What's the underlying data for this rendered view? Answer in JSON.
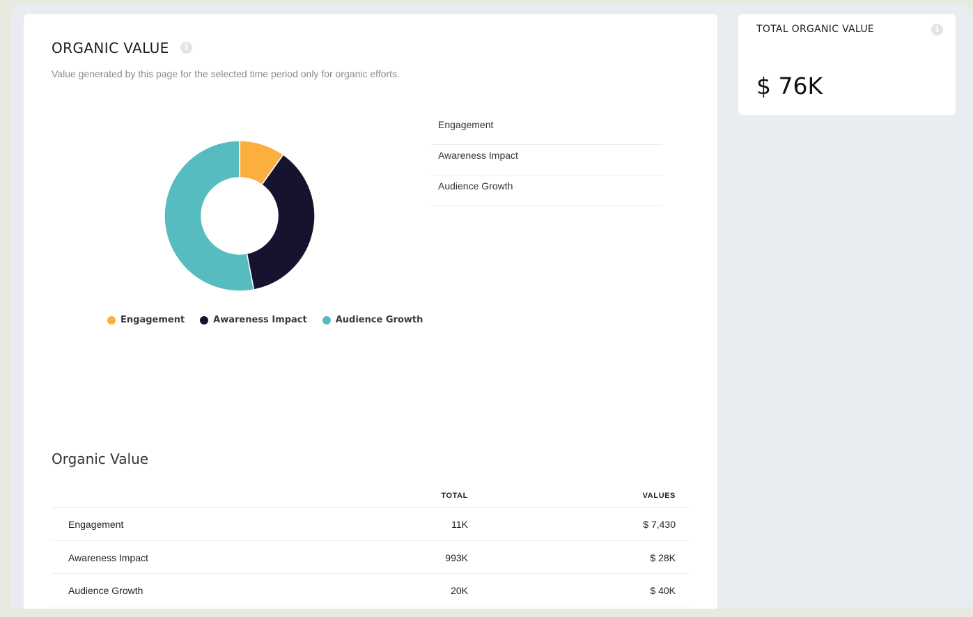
{
  "header": {
    "title": "ORGANIC VALUE",
    "subtitle": "Value generated by this page for the selected time period only for organic efforts."
  },
  "icons": {
    "info": "i"
  },
  "colors": {
    "engagement": "#fbaf3f",
    "awareness": "#15132e",
    "audience": "#56bcbf"
  },
  "category_list": [
    "Engagement",
    "Awareness Impact",
    "Audience Growth"
  ],
  "chart_data": {
    "type": "pie",
    "title": "",
    "donut": true,
    "categories": [
      "Engagement",
      "Awareness Impact",
      "Audience Growth"
    ],
    "values": [
      7430,
      28000,
      40000
    ],
    "legend_position": "bottom"
  },
  "table": {
    "title": "Organic Value",
    "headers": {
      "total": "TOTAL",
      "values": "VALUES"
    },
    "rows": [
      {
        "name": "Engagement",
        "total": "11K",
        "value": "$ 7,430"
      },
      {
        "name": "Awareness Impact",
        "total": "993K",
        "value": "$ 28K"
      },
      {
        "name": "Audience Growth",
        "total": "20K",
        "value": "$ 40K"
      }
    ]
  },
  "summary": {
    "title": "TOTAL ORGANIC VALUE",
    "value": "$ 76K"
  }
}
